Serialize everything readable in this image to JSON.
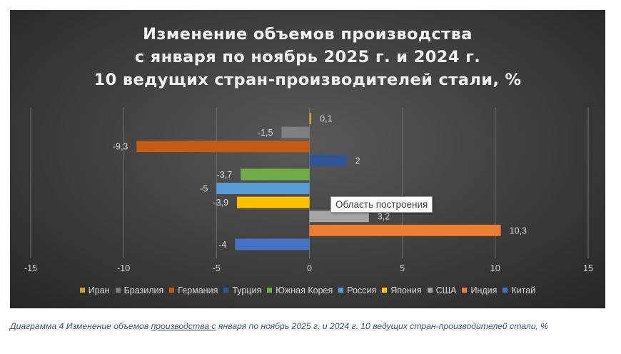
{
  "chart_data": {
    "type": "bar",
    "orientation": "horizontal",
    "title_lines": [
      "Изменение объемов производства",
      "с января по ноябрь 2025 г. и 2024 г.",
      "10 ведущих стран-производителей стали, %"
    ],
    "categories": [
      "Иран",
      "Бразилия",
      "Германия",
      "Турция",
      "Южная Корея",
      "Россия",
      "Япония",
      "США",
      "Индия",
      "Китай"
    ],
    "values": [
      0.1,
      -1.5,
      -9.3,
      2,
      -3.7,
      -5,
      -3.9,
      3.2,
      10.3,
      -4
    ],
    "value_labels": [
      "0,1",
      "-1,5",
      "-9,3",
      "2",
      "-3,7",
      "-5",
      "-3,9",
      "3,2",
      "10,3",
      "-4"
    ],
    "colors": [
      "#c9a227",
      "#7f7f7f",
      "#c55a11",
      "#2f5597",
      "#70ad47",
      "#5b9bd5",
      "#ffc000",
      "#a5a5a5",
      "#ed7d31",
      "#4472c4"
    ],
    "xlim": [
      -15,
      15
    ],
    "xticks": [
      -15,
      -10,
      -5,
      0,
      5,
      10,
      15
    ],
    "grid": true,
    "legend_position": "bottom"
  },
  "tooltip": "Область построения",
  "caption": {
    "prefix": "Диаграмма 4 Изменение объемов ",
    "underlined": "производства  с",
    "suffix": " января по ноябрь 2025 г. и 2024 г.  10 ведущих стран-производителей стали, %"
  }
}
